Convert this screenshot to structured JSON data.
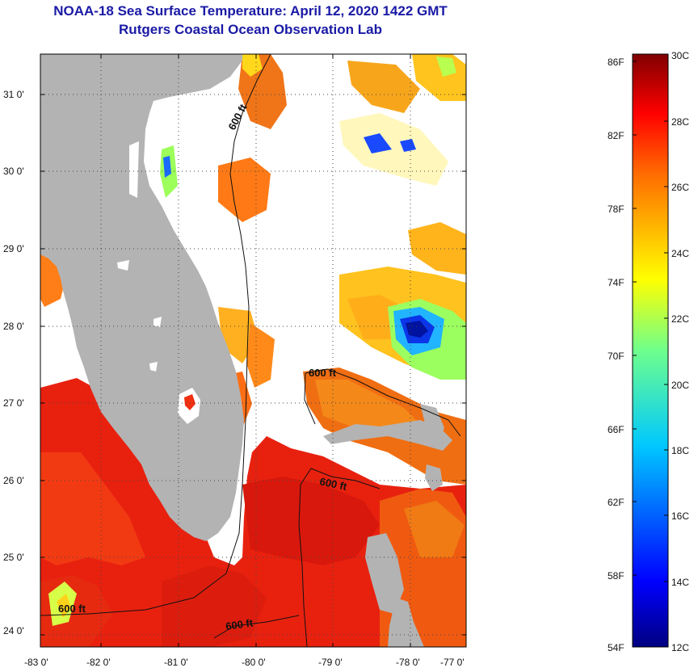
{
  "header": {
    "title_line1": "NOAA-18 Sea Surface Temperature:  April 12, 2020 1422 GMT",
    "title_line2": "Rutgers Coastal Ocean Observation Lab"
  },
  "map": {
    "lon_ticks": [
      "-83 0'",
      "-82 0'",
      "-81 0'",
      "-80 0'",
      "-79 0'",
      "-78 0'",
      "-77 0'"
    ],
    "lat_ticks": [
      "31 0'",
      "30 0'",
      "29 0'",
      "28 0'",
      "27 0'",
      "26 0'",
      "25 0'",
      "24 0'"
    ],
    "isobath_label": "600 ft",
    "land_color": "#b4b4b4",
    "no_data_color": "#ffffff"
  },
  "colorbar": {
    "fahrenheit_labels": [
      "86F",
      "82F",
      "78F",
      "74F",
      "70F",
      "66F",
      "62F",
      "58F",
      "54F"
    ],
    "celsius_labels": [
      "30C",
      "28C",
      "26C",
      "24C",
      "22C",
      "20C",
      "18C",
      "16C",
      "14C",
      "12C"
    ]
  }
}
